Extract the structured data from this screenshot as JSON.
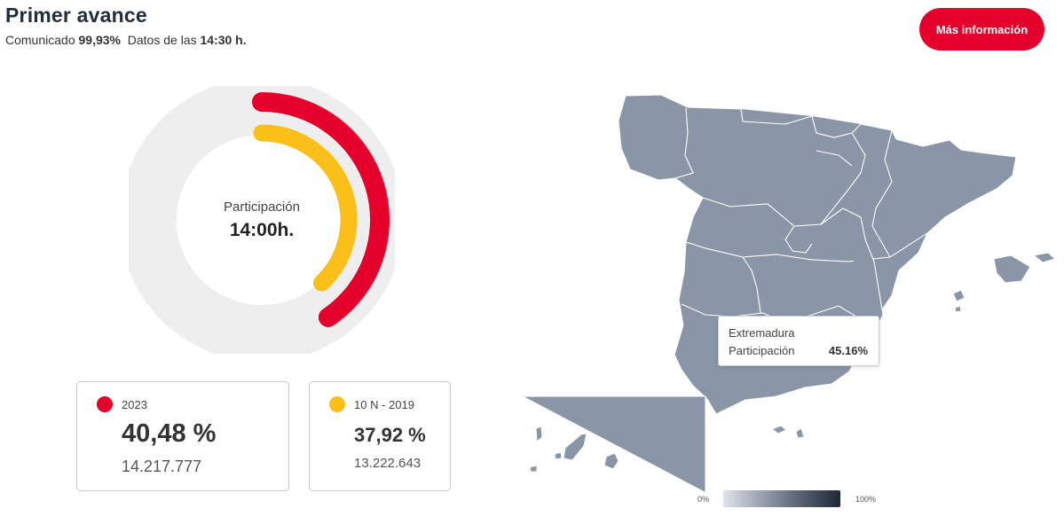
{
  "header": {
    "title": "Primer avance",
    "communicated_label": "Comunicado",
    "communicated_value": "99,93%",
    "data_label": "Datos de las",
    "data_time": "14:30 h."
  },
  "more_button": {
    "label": "Más información"
  },
  "donut": {
    "center_label": "Participación",
    "center_value": "14:00h.",
    "track_color": "#eeeeee"
  },
  "cards": [
    {
      "legend": "2023",
      "color": "#e4002b",
      "percent": "40,48 %",
      "percent_value": 40.48,
      "votes": "14.217.777"
    },
    {
      "legend": "10 N - 2019",
      "color": "#fbbf1a",
      "percent": "37,92 %",
      "percent_value": 37.92,
      "votes": "13.222.643"
    }
  ],
  "map": {
    "region_color": "#8a96a8",
    "tooltip": {
      "region": "Extremadura",
      "label": "Participación",
      "value": "45.16%"
    },
    "scale": {
      "min_label": "0%",
      "max_label": "100%"
    }
  }
}
